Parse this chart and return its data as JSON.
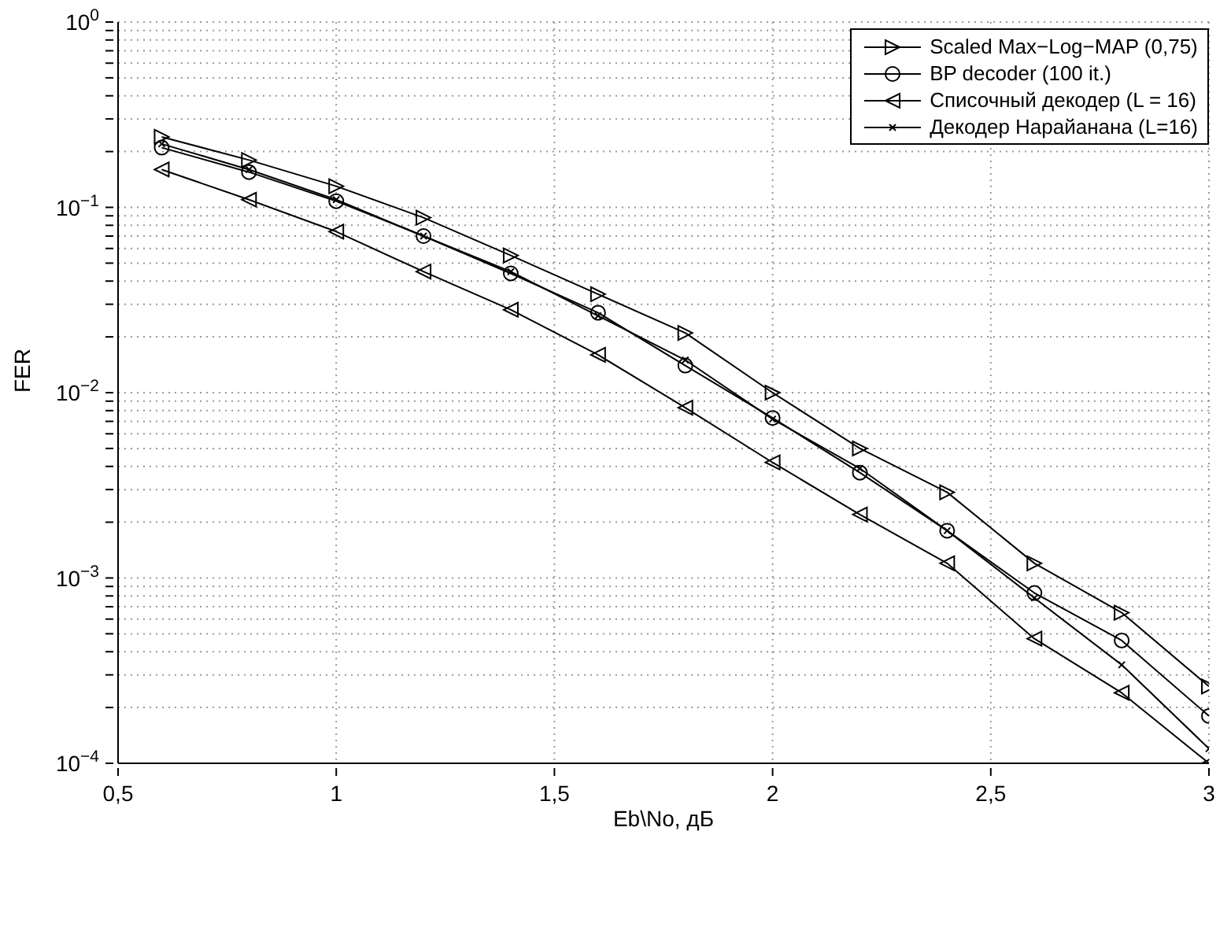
{
  "chart_data": {
    "type": "line",
    "xlabel": "Eb\\No, дБ",
    "ylabel": "FER",
    "log": "y",
    "grid": true,
    "legend": "top right",
    "line_style": "solid",
    "x": [
      0.6,
      0.8,
      1.0,
      1.2,
      1.4,
      1.6,
      1.8,
      2.0,
      2.2,
      2.4,
      2.6,
      2.8,
      3.0
    ],
    "xlim": [
      0.5,
      3
    ],
    "xticks": [
      {
        "value": 0.5,
        "label": "0,5"
      },
      1,
      {
        "value": 1.5,
        "label": "1,5"
      },
      2,
      {
        "value": 2.5,
        "label": "2,5"
      },
      3
    ],
    "ylim": [
      0.0001,
      1
    ],
    "yticks": [
      {
        "value": 0.0001,
        "label": "10$^{−4}$"
      },
      {
        "value": 0.0002,
        "label": null
      },
      {
        "value": 0.0003,
        "label": null
      },
      {
        "value": 0.0004,
        "label": null
      },
      {
        "value": 0.0005,
        "label": null
      },
      {
        "value": 0.0006,
        "label": null
      },
      {
        "value": 0.0007,
        "label": null
      },
      {
        "value": 0.0008,
        "label": null
      },
      {
        "value": 0.0009,
        "label": null
      },
      {
        "value": 0.001,
        "label": "10$^{−3}$"
      },
      {
        "value": 0.002,
        "label": null
      },
      {
        "value": 0.003,
        "label": null
      },
      {
        "value": 0.004,
        "label": null
      },
      {
        "value": 0.005,
        "label": null
      },
      {
        "value": 0.006,
        "label": null
      },
      {
        "value": 0.007,
        "label": null
      },
      {
        "value": 0.008,
        "label": null
      },
      {
        "value": 0.009,
        "label": null
      },
      {
        "value": 0.01,
        "label": "10$^{−2}$"
      },
      {
        "value": 0.02,
        "label": null
      },
      {
        "value": 0.03,
        "label": null
      },
      {
        "value": 0.04,
        "label": null
      },
      {
        "value": 0.05,
        "label": null
      },
      {
        "value": 0.06,
        "label": null
      },
      {
        "value": 0.07,
        "label": null
      },
      {
        "value": 0.08,
        "label": null
      },
      {
        "value": 0.09,
        "label": null
      },
      {
        "value": 0.1,
        "label": "10$^{−1}$"
      },
      {
        "value": 0.2,
        "label": null
      },
      {
        "value": 0.3,
        "label": null
      },
      {
        "value": 0.4,
        "label": null
      },
      {
        "value": 0.5,
        "label": null
      },
      {
        "value": 0.6,
        "label": null
      },
      {
        "value": 0.7,
        "label": null
      },
      {
        "value": 0.8,
        "label": null
      },
      {
        "value": 0.9,
        "label": null
      },
      {
        "value": 1,
        "label": "10$^{0}$"
      }
    ],
    "series": [
      {
        "name": "Scaled Max−Log−MAP (0,75)",
        "color": "#000000",
        "marker": "triangle",
        "values": [
          0.24,
          0.18,
          0.13,
          0.088,
          0.055,
          0.034,
          0.021,
          0.01,
          0.005,
          0.0029,
          0.0012,
          0.00065,
          0.00026
        ]
      },
      {
        "name": "BP decoder (100 it.)",
        "color": "#000000",
        "marker": "circle",
        "values": [
          0.21,
          0.155,
          0.108,
          0.07,
          0.044,
          0.027,
          0.014,
          0.0073,
          0.0037,
          0.0018,
          0.00083,
          0.00046,
          0.00018
        ]
      },
      {
        "name": "Списочный декодер (L = 16)",
        "color": "#000000",
        "marker": "triangle",
        "values": [
          0.16,
          0.11,
          0.074,
          0.045,
          0.028,
          0.016,
          0.0083,
          0.0042,
          0.0022,
          0.0012,
          0.00047,
          0.00024,
          0.0001
        ]
      },
      {
        "name": "Декодер Нарайанана (L=16)",
        "color": "#000000",
        "marker": "cross",
        "values": [
          0.22,
          0.16,
          0.11,
          0.07,
          0.045,
          0.026,
          0.015,
          0.0072,
          0.0039,
          0.0018,
          0.00078,
          0.00034,
          0.00012
        ]
      }
    ]
  }
}
